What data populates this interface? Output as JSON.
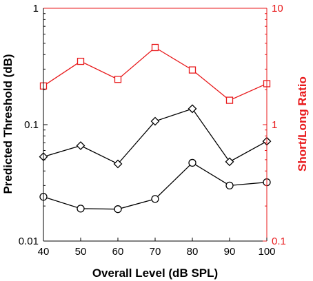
{
  "chart_data": {
    "type": "line",
    "xlabel": "Overall Level (dB SPL)",
    "ylabel_left": "Predicted Threshold (dB)",
    "ylabel_right": "Short/Long Ratio",
    "x": [
      40,
      50,
      60,
      70,
      80,
      90,
      100
    ],
    "xlim": [
      40,
      100
    ],
    "xticks": [
      "40",
      "50",
      "60",
      "70",
      "80",
      "90",
      "100"
    ],
    "y_left_scale": "log",
    "y_left_lim": [
      0.01,
      1
    ],
    "y_left_ticks": [
      "0.01",
      "0.1",
      "1"
    ],
    "y_right_scale": "log",
    "y_right_lim": [
      0.1,
      10
    ],
    "y_right_ticks": [
      "0.1",
      "1",
      "10"
    ],
    "grid": false,
    "colors": {
      "left_axis": "#000000",
      "right_axis": "#e8191b"
    },
    "series": [
      {
        "axis": "left",
        "marker": "diamond",
        "color": "#000000",
        "values": [
          0.053,
          0.066,
          0.046,
          0.107,
          0.137,
          0.048,
          0.072
        ]
      },
      {
        "axis": "left",
        "marker": "circle",
        "color": "#000000",
        "values": [
          0.024,
          0.019,
          0.0188,
          0.023,
          0.047,
          0.03,
          0.032
        ]
      },
      {
        "axis": "right",
        "marker": "square",
        "color": "#e8191b",
        "values": [
          2.15,
          3.5,
          2.45,
          4.6,
          2.95,
          1.62,
          2.25
        ]
      }
    ]
  }
}
